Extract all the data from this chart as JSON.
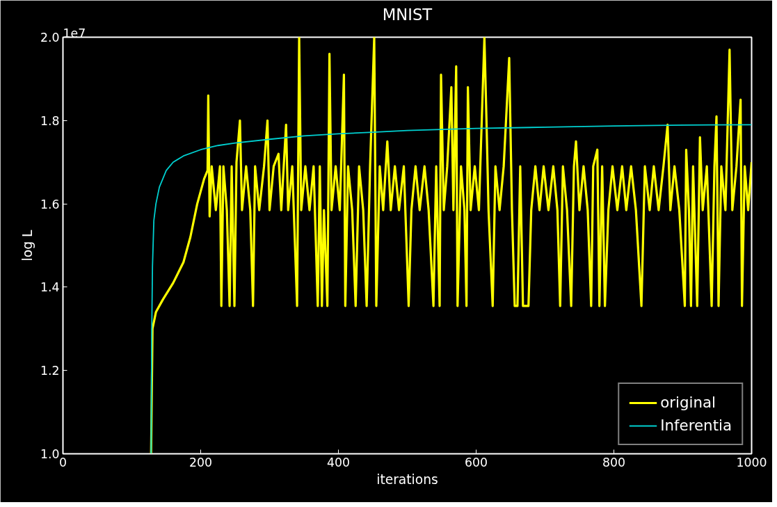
{
  "chart_data": {
    "type": "line",
    "title": "MNIST",
    "xlabel": "iterations",
    "ylabel": "log L",
    "annotations": [
      "1e7"
    ],
    "xlim": [
      0,
      1000
    ],
    "xticks": [
      0,
      200,
      400,
      600,
      800,
      1000
    ],
    "ylim": [
      1.0,
      2.0
    ],
    "yticks": [
      {
        "value": 1.0,
        "label": "1.0"
      },
      {
        "value": 1.2,
        "label": "1.2"
      },
      {
        "value": 1.4,
        "label": "1.4"
      },
      {
        "value": 1.6,
        "label": "1.6"
      },
      {
        "value": 1.8,
        "label": "1.8"
      },
      {
        "value": 2.0,
        "label": "2.0"
      }
    ],
    "grid": false,
    "legend": "bottom right",
    "series": [
      {
        "name": "original",
        "color": "#ffff00",
        "x": [
          128,
          130,
          135,
          145,
          160,
          175,
          185,
          195,
          205,
          210,
          211,
          213,
          216,
          222,
          228,
          230,
          233,
          238,
          242,
          245,
          249,
          252,
          257,
          260,
          266,
          272,
          276,
          279,
          285,
          292,
          297,
          300,
          306,
          313,
          317,
          324,
          327,
          333,
          340,
          343,
          346,
          352,
          358,
          364,
          370,
          373,
          376,
          379,
          384,
          387,
          390,
          396,
          402,
          408,
          410,
          414,
          420,
          425,
          430,
          436,
          441,
          446,
          452,
          455,
          460,
          465,
          471,
          476,
          482,
          488,
          495,
          502,
          506,
          512,
          518,
          525,
          531,
          538,
          542,
          547,
          549,
          553,
          558,
          564,
          567,
          571,
          573,
          578,
          583,
          586,
          588,
          592,
          598,
          604,
          612,
          615,
          618,
          624,
          628,
          634,
          640,
          648,
          652,
          656,
          660,
          664,
          668,
          673,
          676,
          680,
          686,
          692,
          698,
          705,
          712,
          718,
          722,
          726,
          732,
          738,
          742,
          745,
          750,
          756,
          762,
          767,
          770,
          776,
          779,
          783,
          787,
          792,
          798,
          805,
          812,
          818,
          825,
          832,
          840,
          845,
          852,
          858,
          865,
          872,
          878,
          882,
          888,
          895,
          903,
          905,
          909,
          912,
          915,
          921,
          925,
          929,
          935,
          942,
          946,
          949,
          952,
          956,
          962,
          968,
          972,
          978,
          984,
          986,
          990,
          995,
          1000
        ],
        "values": [
          1.0,
          1.3,
          1.34,
          1.37,
          1.41,
          1.46,
          1.52,
          1.6,
          1.66,
          1.68,
          1.86,
          1.57,
          1.69,
          1.585,
          1.69,
          1.355,
          1.69,
          1.585,
          1.355,
          1.69,
          1.355,
          1.7,
          1.8,
          1.585,
          1.69,
          1.585,
          1.355,
          1.69,
          1.585,
          1.69,
          1.8,
          1.585,
          1.69,
          1.72,
          1.585,
          1.79,
          1.585,
          1.69,
          1.355,
          2.0,
          1.585,
          1.69,
          1.585,
          1.69,
          1.355,
          1.69,
          1.355,
          1.585,
          1.355,
          1.96,
          1.585,
          1.69,
          1.585,
          1.91,
          1.355,
          1.69,
          1.585,
          1.355,
          1.69,
          1.585,
          1.355,
          1.69,
          2.0,
          1.355,
          1.69,
          1.585,
          1.75,
          1.585,
          1.69,
          1.585,
          1.69,
          1.355,
          1.585,
          1.69,
          1.585,
          1.69,
          1.585,
          1.355,
          1.69,
          1.355,
          1.91,
          1.585,
          1.69,
          1.88,
          1.585,
          1.93,
          1.355,
          1.69,
          1.585,
          1.355,
          1.88,
          1.585,
          1.69,
          1.585,
          2.0,
          1.8,
          1.585,
          1.355,
          1.69,
          1.585,
          1.69,
          1.95,
          1.585,
          1.355,
          1.355,
          1.69,
          1.355,
          1.355,
          1.355,
          1.585,
          1.69,
          1.585,
          1.69,
          1.585,
          1.69,
          1.585,
          1.355,
          1.69,
          1.585,
          1.355,
          1.69,
          1.75,
          1.585,
          1.69,
          1.585,
          1.355,
          1.69,
          1.73,
          1.355,
          1.69,
          1.355,
          1.585,
          1.69,
          1.585,
          1.69,
          1.585,
          1.69,
          1.585,
          1.355,
          1.69,
          1.585,
          1.69,
          1.585,
          1.69,
          1.79,
          1.585,
          1.69,
          1.585,
          1.355,
          1.73,
          1.585,
          1.355,
          1.69,
          1.355,
          1.76,
          1.585,
          1.69,
          1.355,
          1.69,
          1.81,
          1.355,
          1.69,
          1.585,
          1.97,
          1.585,
          1.69,
          1.85,
          1.355,
          1.69,
          1.585,
          1.7
        ]
      },
      {
        "name": "Inferentia",
        "color": "#00d0d0",
        "x": [
          128,
          129,
          130,
          132,
          135,
          140,
          150,
          160,
          175,
          200,
          225,
          250,
          300,
          350,
          400,
          450,
          500,
          600,
          700,
          800,
          900,
          1000
        ],
        "values": [
          1.0,
          1.3,
          1.45,
          1.56,
          1.6,
          1.64,
          1.68,
          1.7,
          1.715,
          1.73,
          1.74,
          1.746,
          1.755,
          1.763,
          1.768,
          1.772,
          1.776,
          1.781,
          1.784,
          1.787,
          1.789,
          1.79
        ]
      }
    ]
  }
}
